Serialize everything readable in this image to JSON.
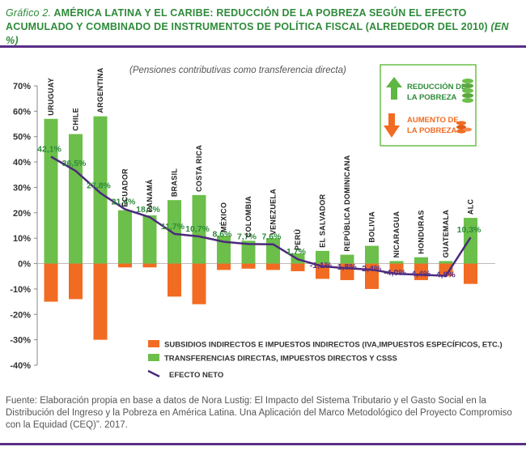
{
  "title": {
    "lead": "Gráfico 2.",
    "text": "AMÉRICA LATINA Y EL CARIBE: REDUCCIÓN DE LA POBREZA SEGÚN EL EFECTO ACUMULADO Y COMBINADO DE INSTRUMENTOS DE POLÍTICA FISCAL (ALREDEDOR DEL 2010)",
    "unit": "(EN %)"
  },
  "source": "Fuente: Elaboración propia en base a datos de Nora Lustig: El Impacto del Sistema Tributario y el Gasto Social en la Distribución del Ingreso y la Pobreza en América Latina. Una Aplicación del Marco Metodológico del Proyecto Compromiso con la Equidad (CEQ)”. 2017.",
  "colors": {
    "green": "#6cbf4a",
    "orange": "#f26b22",
    "purple": "#4b2a7b",
    "label_green": "#2e8b3a",
    "rule": "#5a2f86"
  },
  "info_box": {
    "reduction_label_1": "REDUCCIÓN DE",
    "reduction_label_2": "LA POBREZA",
    "reduction_icon": "green-up-arrow-icon",
    "coins_green_icon": "green-coins-icon",
    "increase_label_1": "AUMENTO DE",
    "increase_label_2": "LA POBREZA",
    "increase_icon": "orange-down-arrow-icon",
    "coins_orange_icon": "orange-coins-icon"
  },
  "chart_data": {
    "type": "bar",
    "subtitle": "(Pensiones contributivas como transferencia directa)",
    "categories": [
      "URUGUAY",
      "CHILE",
      "ARGENTINA",
      "ECUADOR",
      "PANAMÁ",
      "BRASIL",
      "COSTA RICA",
      "MÉXICO",
      "COLOMBIA",
      "VENEZUELA",
      "PERÚ",
      "EL SALVADOR",
      "REPÚBLICA DOMINICANA",
      "BOLIVIA",
      "NICARAGUA",
      "HONDURAS",
      "GUATEMALA",
      "ALC"
    ],
    "ylim": [
      -40,
      70
    ],
    "yticks": [
      "70%",
      "60%",
      "50%",
      "40%",
      "30%",
      "20%",
      "10%",
      "0%",
      "-10%",
      "-20%",
      "-30%",
      "-40%"
    ],
    "ytick_values": [
      70,
      60,
      50,
      40,
      30,
      20,
      10,
      0,
      -10,
      -20,
      -30,
      -40
    ],
    "series": [
      {
        "name": "SUBSIDIOS INDIRECTOS E IMPUESTOS INDIRECTOS (IVA,IMPUESTOS ESPECÍFICOS, ETC.)",
        "kind": "bar",
        "values": [
          -15,
          -14,
          -30,
          -1.5,
          -1.5,
          -13,
          -16,
          -2.5,
          -2,
          -2.5,
          -3,
          -6,
          -6.5,
          -10,
          -3.5,
          -6.5,
          -5,
          -8
        ]
      },
      {
        "name": "TRANSFERENCIAS DIRECTAS, IMPUESTOS DIRECTOS Y CSSS",
        "kind": "bar",
        "values": [
          57,
          51,
          58,
          21,
          19,
          25,
          27,
          11,
          9,
          10,
          4,
          5,
          3.5,
          7,
          1,
          2.5,
          1,
          18
        ]
      },
      {
        "name": "EFECTO NETO",
        "kind": "line",
        "values": [
          42.1,
          36.5,
          27.8,
          21.4,
          18.3,
          11.7,
          10.7,
          8.6,
          7.7,
          7.6,
          1.7,
          -1.1,
          -1.8,
          -2.4,
          -4.0,
          -4.4,
          -4.8,
          10.3
        ],
        "labels": [
          "42,1%",
          "36,5%",
          "27,8%",
          "21,4%",
          "18,3%",
          "11,7%",
          "10,7%",
          "8,6%",
          "7,7%",
          "7,6%",
          "1,7%",
          "-1,1%",
          "-1,8%",
          "-2,4%",
          "-4,0%",
          "-4,4%",
          "-4,8%",
          "10,3%"
        ]
      }
    ],
    "grid": false,
    "legend_position": "bottom"
  }
}
